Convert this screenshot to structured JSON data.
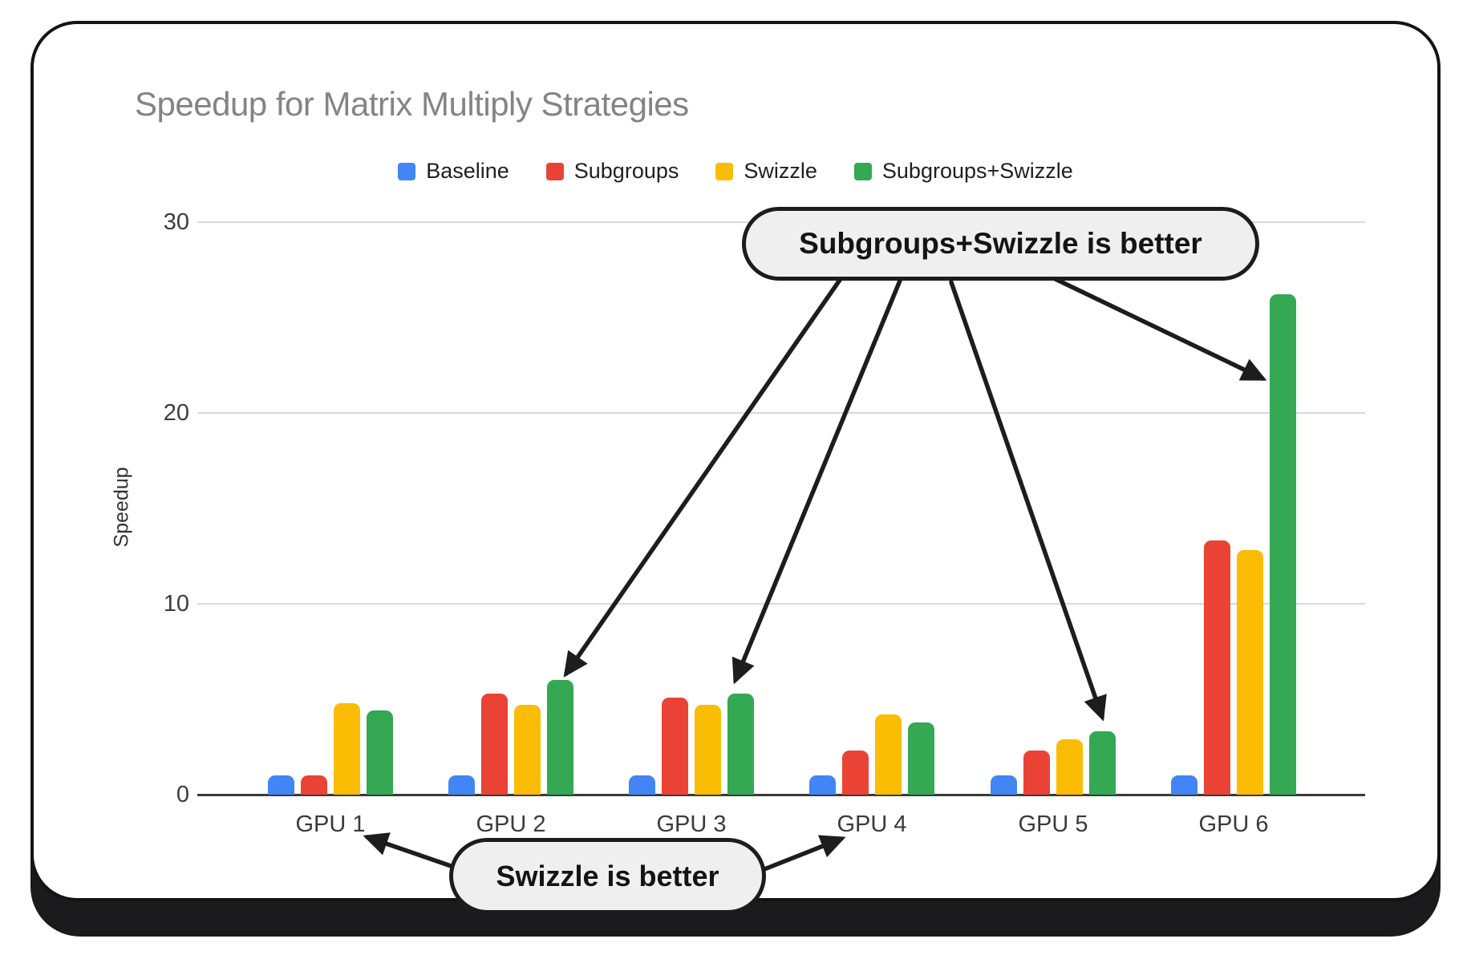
{
  "chart_data": {
    "type": "bar",
    "title": "Speedup for Matrix Multiply Strategies",
    "xlabel": "",
    "ylabel": "Speedup",
    "categories": [
      "GPU 1",
      "GPU 2",
      "GPU 3",
      "GPU 4",
      "GPU 5",
      "GPU 6"
    ],
    "series": [
      {
        "name": "Baseline",
        "color": "#4285F4",
        "values": [
          1.0,
          1.0,
          1.0,
          1.0,
          1.0,
          1.0
        ]
      },
      {
        "name": "Subgroups",
        "color": "#EA4335",
        "values": [
          1.0,
          5.3,
          5.1,
          2.3,
          2.3,
          13.3
        ]
      },
      {
        "name": "Swizzle",
        "color": "#FBBC04",
        "values": [
          4.8,
          4.7,
          4.7,
          4.2,
          2.9,
          12.8
        ]
      },
      {
        "name": "Subgroups+Swizzle",
        "color": "#34A853",
        "values": [
          4.4,
          6.0,
          5.3,
          3.8,
          3.3,
          26.2
        ]
      }
    ],
    "ylim": [
      0,
      30
    ],
    "yticks": [
      0,
      10,
      20,
      30
    ],
    "grid": true,
    "legend_position": "top"
  },
  "annotations": {
    "subgroups_swizzle_callout": {
      "text": "Subgroups+Swizzle is better"
    },
    "swizzle_callout": {
      "text": "Swizzle is better"
    }
  },
  "colors": {
    "card_border": "#141414",
    "callout_background": "#efefef",
    "title_text": "#848484"
  }
}
